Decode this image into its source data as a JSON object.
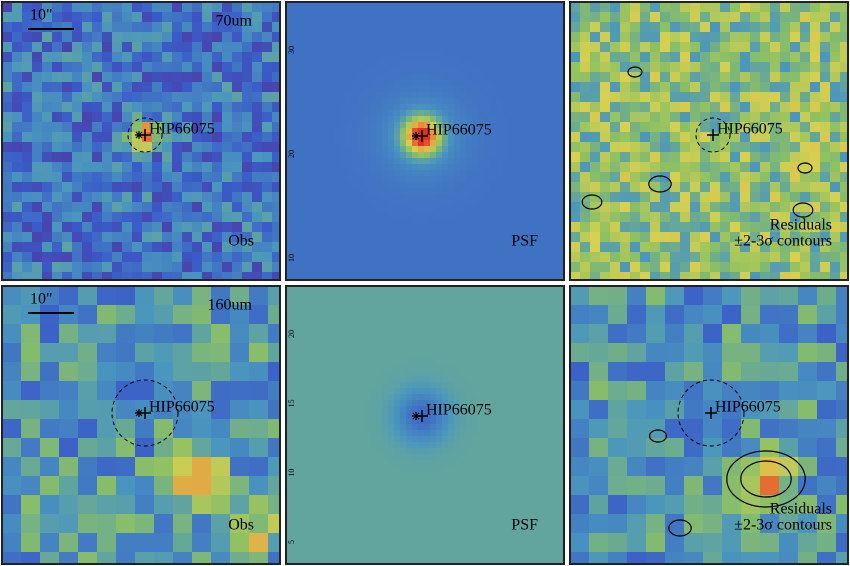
{
  "rows": [
    {
      "band": "70um",
      "scale": "10\"",
      "panels": [
        {
          "source": "HIP66075",
          "caption": [
            "Obs"
          ]
        },
        {
          "source": "HIP66075",
          "caption": [
            "PSF"
          ],
          "ticks": [
            "30",
            "20",
            "10"
          ]
        },
        {
          "source": "HIP66075",
          "caption": [
            "Residuals",
            "±2-3σ contours"
          ]
        }
      ]
    },
    {
      "band": "160um",
      "scale": "10\"",
      "panels": [
        {
          "source": "HIP66075",
          "caption": [
            "Obs"
          ]
        },
        {
          "source": "HIP66075",
          "caption": [
            "PSF"
          ],
          "ticks": [
            "20",
            "15",
            "10",
            "5"
          ]
        },
        {
          "source": "HIP66075",
          "caption": [
            "Residuals",
            "±2-3σ contours"
          ]
        }
      ]
    }
  ]
}
